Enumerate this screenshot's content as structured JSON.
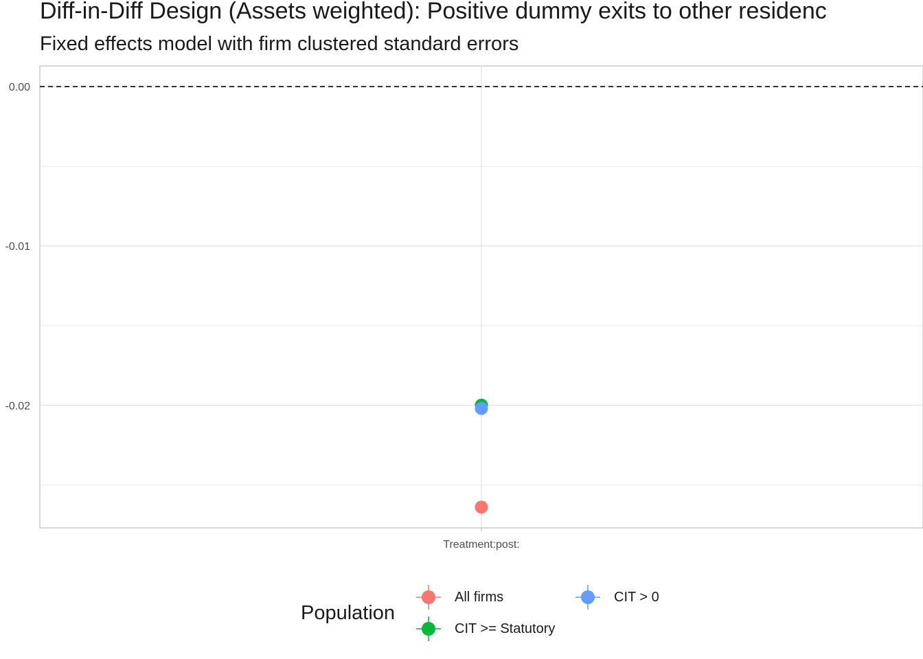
{
  "header": {
    "title": "Diff-in-Diff Design (Assets weighted): Positive dummy exits to other residenc",
    "subtitle": "Fixed effects model with firm clustered standard errors"
  },
  "chart_data": {
    "type": "scatter",
    "title": "Diff-in-Diff Design (Assets weighted): Positive dummy exits to other residenc",
    "subtitle": "Fixed effects model with firm clustered standard errors",
    "xlabel": "",
    "ylabel": "",
    "categories": [
      "Treatment:post:"
    ],
    "ylim": [
      -0.0277,
      0.0013
    ],
    "y_ticks": [
      0.0,
      -0.01,
      -0.02
    ],
    "y_tick_labels": [
      "0.00",
      "-0.01",
      "-0.02"
    ],
    "y_minor_ticks": [
      -0.005,
      -0.015,
      -0.025
    ],
    "reference_line": {
      "y": 0,
      "style": "dashed"
    },
    "grid": true,
    "legend": {
      "title": "Population",
      "position": "bottom"
    },
    "series": [
      {
        "name": "All firms",
        "color": "#F8766D",
        "values": [
          -0.0264
        ]
      },
      {
        "name": "CIT >= Statutory",
        "color": "#00BA38",
        "values": [
          -0.02
        ]
      },
      {
        "name": "CIT > 0",
        "color": "#619CFF",
        "values": [
          -0.0202
        ]
      }
    ],
    "legend_order": [
      "All firms",
      "CIT > 0",
      "CIT >= Statutory"
    ]
  }
}
